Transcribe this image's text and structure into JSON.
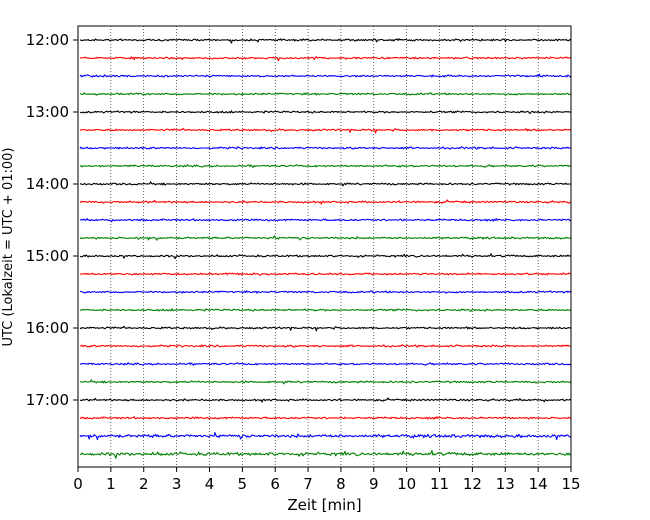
{
  "chart_data": {
    "type": "line",
    "title": "",
    "xlabel": "Zeit  [min]",
    "ylabel": "UTC (Lokalzeit = UTC + 01:00)",
    "xlim": [
      0,
      15
    ],
    "x_ticks": [
      "0",
      "1",
      "2",
      "3",
      "4",
      "5",
      "6",
      "7",
      "8",
      "9",
      "10",
      "11",
      "12",
      "13",
      "14",
      "15"
    ],
    "y_ticks": [
      "12:00",
      "13:00",
      "14:00",
      "15:00",
      "16:00",
      "17:00"
    ],
    "grid": "vertical dotted",
    "trace_start": "12:00",
    "trace_interval_min": 15,
    "trace_count": 24,
    "trace_colors": [
      "#000000",
      "#ff0000",
      "#0000ff",
      "#008000"
    ]
  }
}
